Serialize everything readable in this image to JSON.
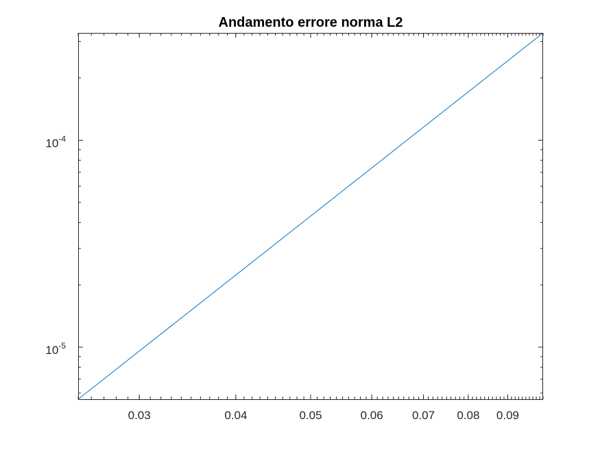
{
  "chart_data": {
    "type": "line",
    "title": "Andamento errore norma L2",
    "xlabel": "",
    "ylabel": "",
    "xscale": "log",
    "yscale": "log",
    "xlim": [
      0.025,
      0.1
    ],
    "ylim": [
      5.6e-06,
      0.00033
    ],
    "grid": false,
    "legend": "none",
    "x_ticks": [
      {
        "value": 0.03,
        "label": "0.03"
      },
      {
        "value": 0.04,
        "label": "0.04"
      },
      {
        "value": 0.05,
        "label": "0.05"
      },
      {
        "value": 0.06,
        "label": "0.06"
      },
      {
        "value": 0.07,
        "label": "0.07"
      },
      {
        "value": 0.08,
        "label": "0.08"
      },
      {
        "value": 0.09,
        "label": "0.09"
      }
    ],
    "y_ticks": [
      {
        "value": 1e-05,
        "base": "10",
        "exponent": "-5"
      },
      {
        "value": 0.0001,
        "base": "10",
        "exponent": "-4"
      }
    ],
    "series": [
      {
        "color": "#0072BD",
        "x": [
          0.025,
          0.1
        ],
        "y": [
          5.6e-06,
          0.00033
        ]
      }
    ]
  }
}
